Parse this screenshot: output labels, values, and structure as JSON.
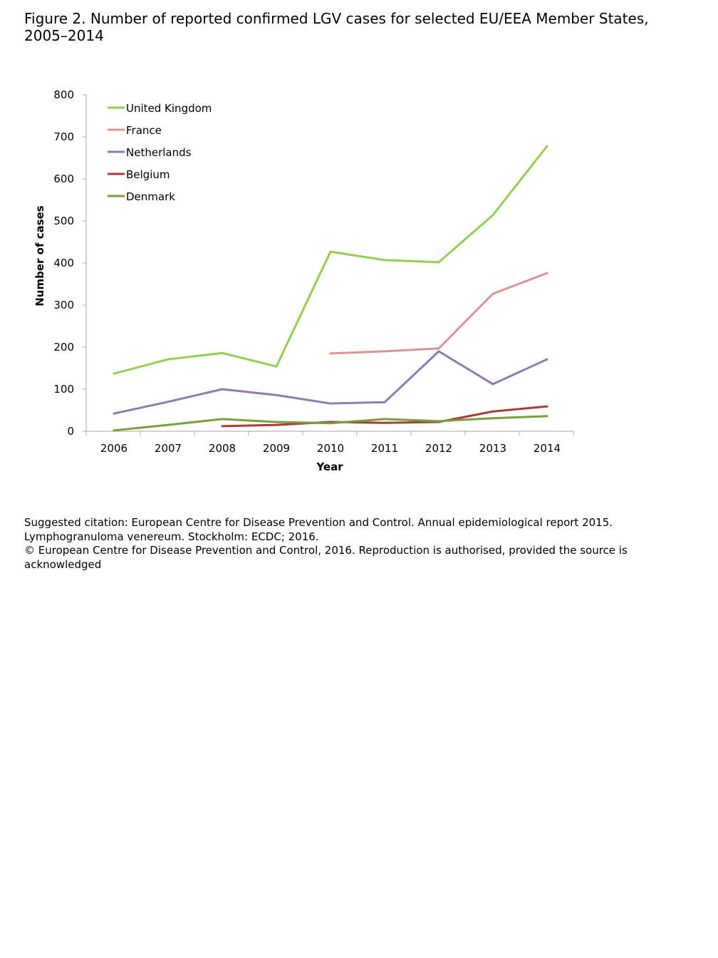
{
  "title": "Figure 2. Number of reported confirmed LGV cases for selected EU/EEA Member States, 2005–2014",
  "citation": {
    "line1": "Suggested citation: European Centre for Disease Prevention and Control. Annual epidemiological report 2015. Lymphogranuloma venereum. Stockholm: ECDC; 2016.",
    "line2": "© European Centre for Disease Prevention and Control, 2016. Reproduction is authorised, provided the source is acknowledged"
  },
  "chart_data": {
    "type": "line",
    "title": "Figure 2. Number of reported confirmed LGV cases for selected EU/EEA Member States, 2005–2014",
    "xlabel": "Year",
    "ylabel": "Number of cases",
    "ylim": [
      0,
      800
    ],
    "yticks": [
      0,
      100,
      200,
      300,
      400,
      500,
      600,
      700,
      800
    ],
    "categories": [
      "2006",
      "2007",
      "2008",
      "2009",
      "2010",
      "2011",
      "2012",
      "2013",
      "2014"
    ],
    "legend_position": "top-left",
    "grid": false,
    "series": [
      {
        "name": "United Kingdom",
        "color": "#92d050",
        "values": [
          137,
          171,
          186,
          154,
          427,
          407,
          402,
          514,
          678
        ]
      },
      {
        "name": "France",
        "color": "#d99594",
        "values": [
          null,
          null,
          null,
          null,
          185,
          190,
          197,
          327,
          376
        ]
      },
      {
        "name": "Netherlands",
        "color": "#8e7cb0",
        "values": [
          42,
          70,
          100,
          86,
          66,
          69,
          190,
          112,
          171
        ]
      },
      {
        "name": "Belgium",
        "color": "#a93a38",
        "values": [
          null,
          null,
          12,
          15,
          22,
          20,
          22,
          47,
          59
        ]
      },
      {
        "name": "Denmark",
        "color": "#77a03a",
        "values": [
          2,
          15,
          29,
          22,
          19,
          29,
          24,
          31,
          36
        ]
      }
    ]
  }
}
